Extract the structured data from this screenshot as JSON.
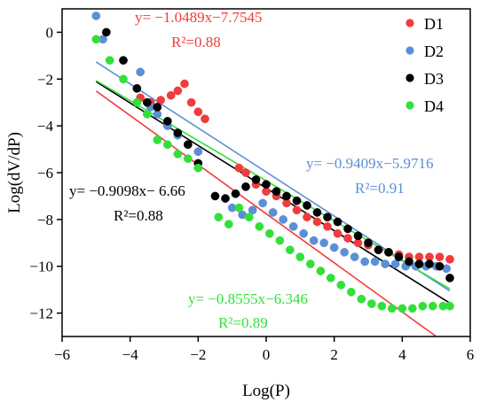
{
  "chart_data": {
    "type": "scatter",
    "title": "",
    "xlabel": "Log(P)",
    "ylabel": "Log(dV/dP)",
    "xlim": [
      -6,
      6
    ],
    "ylim": [
      -13,
      1
    ],
    "x_ticks": [
      "−6",
      "−4",
      "−2",
      "0",
      "2",
      "4",
      "6"
    ],
    "y_ticks": [
      "0",
      "−2",
      "−4",
      "−6",
      "−8",
      "−10",
      "−12"
    ],
    "x_tick_values": [
      -6,
      -4,
      -2,
      0,
      2,
      4,
      6
    ],
    "y_tick_values": [
      0,
      -2,
      -4,
      -6,
      -8,
      -10,
      -12
    ],
    "legend_position": "top-right",
    "grid": false,
    "series": [
      {
        "name": "D1",
        "color": "#f03c3c",
        "points": [
          [
            -3.7,
            -2.8
          ],
          [
            -3.4,
            -3.0
          ],
          [
            -3.1,
            -2.9
          ],
          [
            -2.8,
            -2.7
          ],
          [
            -2.6,
            -2.5
          ],
          [
            -2.4,
            -2.2
          ],
          [
            -2.2,
            -3.0
          ],
          [
            -2.0,
            -3.4
          ],
          [
            -1.8,
            -3.7
          ],
          [
            -0.8,
            -5.8
          ],
          [
            -0.6,
            -6.0
          ],
          [
            -0.3,
            -6.5
          ],
          [
            0.0,
            -6.8
          ],
          [
            0.3,
            -7.0
          ],
          [
            0.6,
            -7.3
          ],
          [
            0.9,
            -7.6
          ],
          [
            1.2,
            -7.9
          ],
          [
            1.5,
            -8.1
          ],
          [
            1.8,
            -8.3
          ],
          [
            2.1,
            -8.6
          ],
          [
            2.4,
            -8.8
          ],
          [
            2.7,
            -9.0
          ],
          [
            3.0,
            -9.1
          ],
          [
            3.3,
            -9.3
          ],
          [
            3.6,
            -9.4
          ],
          [
            3.9,
            -9.5
          ],
          [
            4.2,
            -9.6
          ],
          [
            4.5,
            -9.6
          ],
          [
            4.8,
            -9.6
          ],
          [
            5.1,
            -9.6
          ],
          [
            5.4,
            -9.7
          ]
        ],
        "fit": {
          "slope": -1.0489,
          "intercept": -7.7545,
          "x_range": [
            -5,
            5.4
          ]
        },
        "equation": "y= −1.0489x−7.7545",
        "r2": "R²=0.88"
      },
      {
        "name": "D2",
        "color": "#5b8fd6",
        "points": [
          [
            -5.0,
            0.7
          ],
          [
            -4.8,
            -0.3
          ],
          [
            -3.7,
            -1.7
          ],
          [
            -3.4,
            -3.2
          ],
          [
            -3.2,
            -3.5
          ],
          [
            -2.9,
            -4.0
          ],
          [
            -2.6,
            -4.4
          ],
          [
            -2.3,
            -4.8
          ],
          [
            -2.0,
            -5.1
          ],
          [
            -1.0,
            -7.5
          ],
          [
            -0.7,
            -7.8
          ],
          [
            -0.4,
            -7.6
          ],
          [
            -0.1,
            -7.3
          ],
          [
            0.2,
            -7.7
          ],
          [
            0.5,
            -8.0
          ],
          [
            0.8,
            -8.3
          ],
          [
            1.1,
            -8.6
          ],
          [
            1.4,
            -8.9
          ],
          [
            1.7,
            -9.0
          ],
          [
            2.0,
            -9.2
          ],
          [
            2.3,
            -9.4
          ],
          [
            2.6,
            -9.6
          ],
          [
            2.9,
            -9.8
          ],
          [
            3.2,
            -9.8
          ],
          [
            3.5,
            -9.9
          ],
          [
            3.8,
            -9.9
          ],
          [
            4.1,
            -10.0
          ],
          [
            4.4,
            -10.0
          ],
          [
            4.7,
            -10.0
          ],
          [
            5.0,
            -10.0
          ],
          [
            5.3,
            -10.1
          ]
        ],
        "fit": {
          "slope": -0.9409,
          "intercept": -5.9716,
          "x_range": [
            -5,
            5.4
          ]
        },
        "equation": "y= −0.9409x−5.9716",
        "r2": "R²=0.91"
      },
      {
        "name": "D3",
        "color": "#000000",
        "points": [
          [
            -4.7,
            0.0
          ],
          [
            -4.2,
            -1.2
          ],
          [
            -3.8,
            -2.4
          ],
          [
            -3.5,
            -3.0
          ],
          [
            -3.2,
            -3.2
          ],
          [
            -2.9,
            -3.8
          ],
          [
            -2.6,
            -4.3
          ],
          [
            -2.3,
            -4.8
          ],
          [
            -2.0,
            -5.6
          ],
          [
            -1.5,
            -7.0
          ],
          [
            -1.2,
            -7.1
          ],
          [
            -0.9,
            -6.9
          ],
          [
            -0.6,
            -6.6
          ],
          [
            -0.3,
            -6.3
          ],
          [
            0.0,
            -6.5
          ],
          [
            0.3,
            -6.8
          ],
          [
            0.6,
            -7.0
          ],
          [
            0.9,
            -7.2
          ],
          [
            1.2,
            -7.4
          ],
          [
            1.5,
            -7.7
          ],
          [
            1.8,
            -7.9
          ],
          [
            2.1,
            -8.1
          ],
          [
            2.4,
            -8.4
          ],
          [
            2.7,
            -8.7
          ],
          [
            3.0,
            -9.0
          ],
          [
            3.3,
            -9.3
          ],
          [
            3.6,
            -9.4
          ],
          [
            3.9,
            -9.6
          ],
          [
            4.2,
            -9.8
          ],
          [
            4.5,
            -9.9
          ],
          [
            4.8,
            -9.9
          ],
          [
            5.1,
            -10.0
          ],
          [
            5.4,
            -10.5
          ]
        ],
        "fit": {
          "slope": -0.9098,
          "intercept": -6.66,
          "x_range": [
            -5,
            5.4
          ]
        },
        "equation": "y= −0.9098x− 6.66",
        "r2": "R²=0.88"
      },
      {
        "name": "D4",
        "color": "#33e03a",
        "points": [
          [
            -5.0,
            -0.3
          ],
          [
            -4.6,
            -1.2
          ],
          [
            -4.2,
            -2.0
          ],
          [
            -3.8,
            -3.0
          ],
          [
            -3.5,
            -3.5
          ],
          [
            -3.2,
            -4.6
          ],
          [
            -2.9,
            -4.8
          ],
          [
            -2.6,
            -5.2
          ],
          [
            -2.3,
            -5.4
          ],
          [
            -2.0,
            -5.8
          ],
          [
            -1.4,
            -7.9
          ],
          [
            -1.1,
            -8.2
          ],
          [
            -0.8,
            -7.5
          ],
          [
            -0.5,
            -7.9
          ],
          [
            -0.2,
            -8.3
          ],
          [
            0.1,
            -8.6
          ],
          [
            0.4,
            -8.9
          ],
          [
            0.7,
            -9.3
          ],
          [
            1.0,
            -9.6
          ],
          [
            1.3,
            -9.9
          ],
          [
            1.6,
            -10.2
          ],
          [
            1.9,
            -10.5
          ],
          [
            2.2,
            -10.8
          ],
          [
            2.5,
            -11.1
          ],
          [
            2.8,
            -11.4
          ],
          [
            3.1,
            -11.6
          ],
          [
            3.4,
            -11.7
          ],
          [
            3.7,
            -11.8
          ],
          [
            4.0,
            -11.8
          ],
          [
            4.3,
            -11.8
          ],
          [
            4.6,
            -11.7
          ],
          [
            4.9,
            -11.7
          ],
          [
            5.2,
            -11.7
          ],
          [
            5.4,
            -11.7
          ]
        ],
        "fit": {
          "slope": -0.8555,
          "intercept": -6.346,
          "x_range": [
            -5,
            5.4
          ]
        },
        "equation": "y= −0.8555x−6.346",
        "r2": "R²=0.89"
      }
    ]
  }
}
